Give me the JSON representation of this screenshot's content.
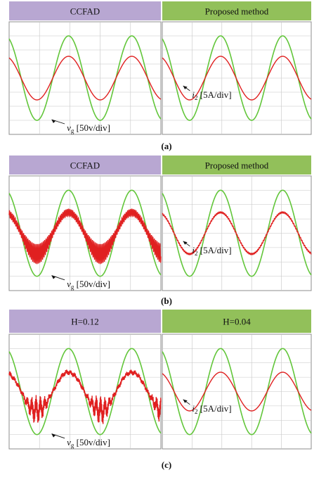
{
  "colors": {
    "header_left": "#b8a7d2",
    "header_right": "#92c05a",
    "grid": "#c6c6c6",
    "vg_wave": "#62c63a",
    "i2_wave": "#e02020",
    "frame": "#8c8c8c"
  },
  "chart_data": [
    {
      "type": "line",
      "caption": "(a)",
      "panels": [
        {
          "header": "CCFAD",
          "cycles_shown": 2.4,
          "series": [
            {
              "name": "vg",
              "waveform": "sine",
              "amplitude_divs": 3.0,
              "distortion": "none"
            },
            {
              "name": "i2",
              "waveform": "sine",
              "amplitude_divs": 1.55,
              "distortion": "none"
            }
          ],
          "annotations": [
            {
              "target": "vg",
              "symbol": "v",
              "subscript": "g",
              "text": "[50v/div]"
            }
          ]
        },
        {
          "header": "Proposed method",
          "cycles_shown": 2.4,
          "series": [
            {
              "name": "vg",
              "waveform": "sine",
              "amplitude_divs": 3.0,
              "distortion": "none"
            },
            {
              "name": "i2",
              "waveform": "sine",
              "amplitude_divs": 1.55,
              "distortion": "none"
            }
          ],
          "annotations": [
            {
              "target": "i2",
              "symbol": "i",
              "subscript": "2",
              "text": "[5A/div]"
            }
          ]
        }
      ]
    },
    {
      "type": "line",
      "caption": "(b)",
      "panels": [
        {
          "header": "CCFAD",
          "cycles_shown": 2.4,
          "series": [
            {
              "name": "vg",
              "waveform": "sine",
              "amplitude_divs": 3.0,
              "distortion": "none"
            },
            {
              "name": "i2",
              "waveform": "sine",
              "amplitude_divs": 1.45,
              "distortion": "high-frequency ripple"
            }
          ],
          "annotations": [
            {
              "target": "vg",
              "symbol": "v",
              "subscript": "g",
              "text": "[50v/div]"
            }
          ]
        },
        {
          "header": "Proposed method",
          "cycles_shown": 2.4,
          "series": [
            {
              "name": "vg",
              "waveform": "sine",
              "amplitude_divs": 3.0,
              "distortion": "none"
            },
            {
              "name": "i2",
              "waveform": "sine",
              "amplitude_divs": 1.45,
              "distortion": "slight ripple"
            }
          ],
          "annotations": [
            {
              "target": "i2",
              "symbol": "i",
              "subscript": "2",
              "text": "[5A/div]"
            }
          ]
        }
      ]
    },
    {
      "type": "line",
      "caption": "(c)",
      "panels": [
        {
          "header": "H=0.12",
          "cycles_shown": 2.4,
          "series": [
            {
              "name": "vg",
              "waveform": "sine",
              "amplitude_divs": 3.0,
              "distortion": "none"
            },
            {
              "name": "i2",
              "waveform": "sine",
              "amplitude_divs": 1.35,
              "distortion": "heavy distortion near troughs"
            }
          ],
          "annotations": [
            {
              "target": "vg",
              "symbol": "v",
              "subscript": "g",
              "text": "[50v/div]"
            }
          ]
        },
        {
          "header": "H=0.04",
          "cycles_shown": 2.4,
          "series": [
            {
              "name": "vg",
              "waveform": "sine",
              "amplitude_divs": 3.0,
              "distortion": "none"
            },
            {
              "name": "i2",
              "waveform": "sine",
              "amplitude_divs": 1.35,
              "distortion": "none"
            }
          ],
          "annotations": [
            {
              "target": "i2",
              "symbol": "i",
              "subscript": "2",
              "text": "[5A/div]"
            }
          ]
        }
      ]
    }
  ]
}
